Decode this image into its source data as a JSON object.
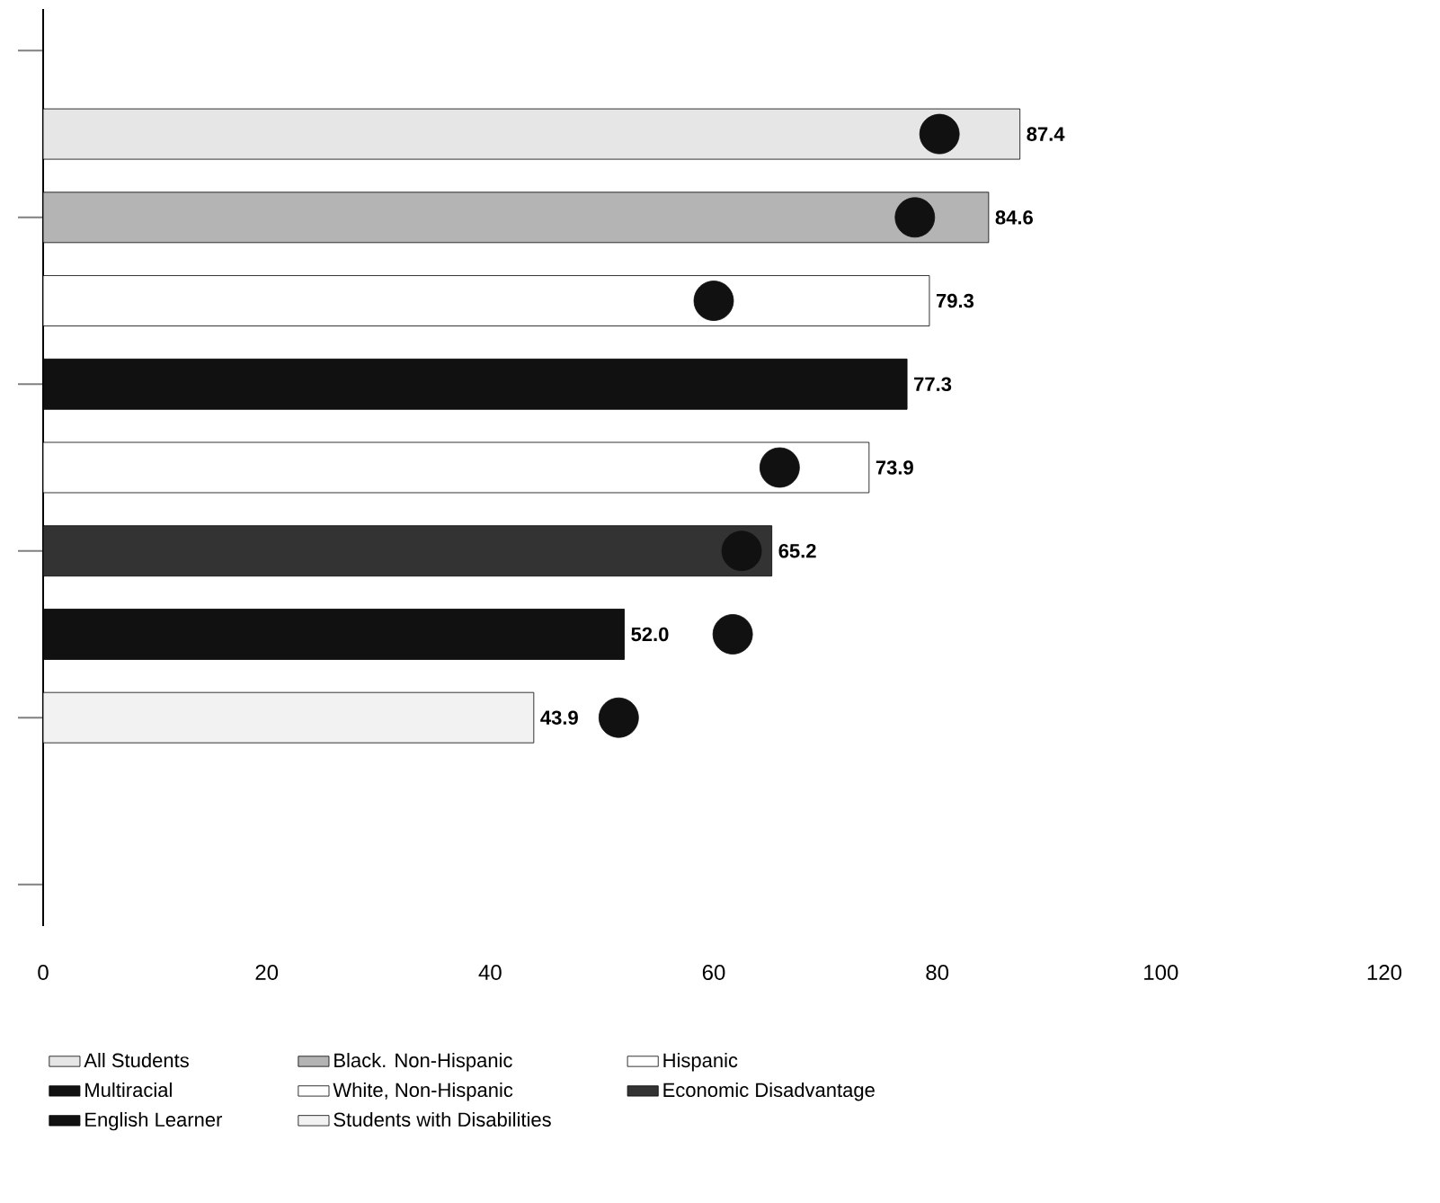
{
  "chart_data": {
    "type": "bar",
    "orientation": "horizontal",
    "categories": [
      null,
      null,
      null,
      null,
      null,
      null,
      null,
      null,
      null,
      null,
      null
    ],
    "series": [
      {
        "name": "All Students",
        "color": "#e6e6e6",
        "values": [
          null,
          87.4,
          null,
          null,
          null,
          null,
          null,
          null,
          null,
          null,
          null
        ],
        "value_labels": [
          null,
          "87.4",
          null,
          null,
          null,
          null,
          null,
          null,
          null,
          null,
          null
        ]
      },
      {
        "name": "Black. Non-Hispanic",
        "color": "#b4b4b4",
        "values": [
          null,
          null,
          84.6,
          null,
          null,
          null,
          null,
          null,
          null,
          null,
          null
        ],
        "value_labels": [
          null,
          null,
          "84.6",
          null,
          null,
          null,
          null,
          null,
          null,
          null,
          null
        ]
      },
      {
        "name": "Hispanic",
        "color": "#ffffff",
        "values": [
          null,
          null,
          null,
          79.3,
          null,
          null,
          null,
          null,
          null,
          null,
          null
        ],
        "value_labels": [
          null,
          null,
          null,
          "79.3",
          null,
          null,
          null,
          null,
          null,
          null,
          null
        ]
      },
      {
        "name": "Multiracial",
        "color": "#111111",
        "values": [
          null,
          null,
          null,
          null,
          77.3,
          null,
          null,
          null,
          null,
          null,
          null
        ],
        "value_labels": [
          null,
          null,
          null,
          null,
          "77.3",
          null,
          null,
          null,
          null,
          null,
          null
        ]
      },
      {
        "name": "White, Non-Hispanic",
        "color": "#ffffff",
        "values": [
          null,
          null,
          null,
          null,
          null,
          73.9,
          null,
          null,
          null,
          null,
          null
        ],
        "value_labels": [
          null,
          null,
          null,
          null,
          null,
          "73.9",
          null,
          null,
          null,
          null,
          null
        ]
      },
      {
        "name": "Economic Disadvantage",
        "color": "#333333",
        "values": [
          null,
          null,
          null,
          null,
          null,
          null,
          65.2,
          null,
          null,
          null,
          null
        ],
        "value_labels": [
          null,
          null,
          null,
          null,
          null,
          null,
          "65.2",
          null,
          null,
          null,
          null
        ]
      },
      {
        "name": "English Learner",
        "color": "#111111",
        "values": [
          null,
          null,
          null,
          null,
          null,
          null,
          null,
          52.0,
          null,
          null,
          null
        ],
        "value_labels": [
          null,
          null,
          null,
          null,
          null,
          null,
          null,
          "52.0",
          null,
          null,
          null
        ]
      },
      {
        "name": "Students with Disabilities",
        "color": "#f2f2f2",
        "values": [
          null,
          null,
          null,
          null,
          null,
          null,
          null,
          null,
          43.9,
          null,
          null
        ],
        "value_labels": [
          null,
          null,
          null,
          null,
          null,
          null,
          null,
          null,
          "43.9",
          null,
          null
        ]
      },
      {
        "type": "scatter",
        "color": "#111111",
        "marker": "circle",
        "values": [
          null,
          80.2,
          78.0,
          60.0,
          null,
          65.9,
          62.5,
          61.7,
          51.5,
          null,
          null
        ]
      }
    ],
    "xlim": [
      0,
      120
    ],
    "xticks": [
      0,
      20,
      40,
      60,
      80,
      100,
      120
    ],
    "legend": "bottom"
  }
}
